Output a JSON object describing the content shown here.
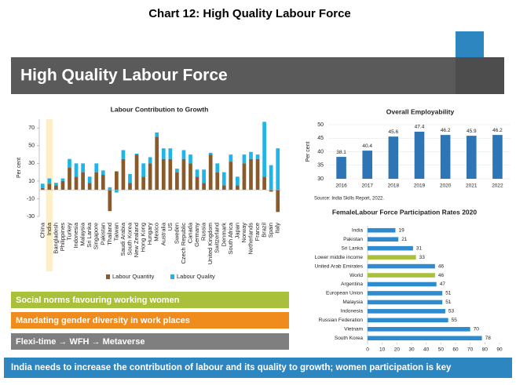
{
  "title": "Chart 12: High Quality Labour Force",
  "banner": "High Quality Labour Force",
  "chart_data": [
    {
      "type": "bar",
      "stacked": true,
      "title": "Labour Contribution to Growth",
      "y_label": "Per cent",
      "categories": [
        "China",
        "India",
        "Bangladesh",
        "Philippines",
        "Turkey",
        "Indonesia",
        "Malaysia",
        "Sri Lanka",
        "Singapore",
        "Pakistan",
        "Thailand",
        "Taiwan",
        "Saudi Arabia",
        "South Korea",
        "New Zealand",
        "Hong Kong",
        "Hungary",
        "Mexico",
        "Australia",
        "US",
        "Sweden",
        "Czech Republic",
        "Canada",
        "Germany",
        "Russia",
        "United Kingdom",
        "Switzerland",
        "Denmark",
        "South Africa",
        "Japan",
        "Norway",
        "Netherlands",
        "France",
        "Brazil",
        "Spain",
        "Italy"
      ],
      "highlight": "India",
      "series": [
        {
          "name": "Labour Quantity",
          "color": "#8b5a2b",
          "values": [
            2,
            7,
            5,
            10,
            25,
            15,
            20,
            8,
            20,
            17,
            -24,
            21,
            35,
            8,
            40,
            15,
            30,
            60,
            35,
            35,
            20,
            35,
            30,
            15,
            8,
            40,
            20,
            5,
            32,
            5,
            30,
            35,
            35,
            15,
            -2,
            -25
          ]
        },
        {
          "name": "Labour Quality",
          "color": "#1fb5e8",
          "values": [
            5,
            6,
            3,
            3,
            10,
            15,
            10,
            7,
            10,
            5,
            3,
            -3,
            10,
            10,
            1,
            15,
            7,
            5,
            12,
            12,
            4,
            10,
            10,
            8,
            15,
            2,
            10,
            15,
            8,
            10,
            10,
            8,
            5,
            62,
            28,
            47
          ]
        }
      ],
      "ylim": [
        -30,
        80
      ],
      "yticks": [
        -30,
        -10,
        10,
        30,
        50,
        70
      ]
    },
    {
      "type": "bar",
      "title": "Overall Employability",
      "y_label": "Per cent",
      "categories": [
        "2016",
        "2017",
        "2018",
        "2019",
        "2020",
        "2021",
        "2022"
      ],
      "values": [
        38.1,
        40.4,
        45.6,
        47.4,
        46.2,
        45.9,
        46.2
      ],
      "color": "#2e75b6",
      "ylim": [
        30,
        50
      ],
      "yticks": [
        30,
        35,
        40,
        45,
        50
      ],
      "grid": true,
      "source": "Source: India Skills Report, 2022."
    },
    {
      "type": "barh",
      "title": "FemaleLabour Force Participation Rates 2020",
      "categories": [
        "India",
        "Pakistan",
        "Sri Lanka",
        "Lower middle income",
        "United Arab Emirates",
        "World",
        "Argentina",
        "European Union",
        "Malaysia",
        "Indonesia",
        "Russian Federation",
        "Vietnam",
        "South Korea"
      ],
      "values": [
        19,
        21,
        31,
        33,
        46,
        46,
        47,
        51,
        51,
        53,
        55,
        70,
        78
      ],
      "colors": [
        "#2e8bcf",
        "#2e8bcf",
        "#2e8bcf",
        "#a8c03a",
        "#2e8bcf",
        "#a8c03a",
        "#2e8bcf",
        "#2e8bcf",
        "#2e8bcf",
        "#2e8bcf",
        "#2e8bcf",
        "#2e8bcf",
        "#2e8bcf"
      ],
      "xlim": [
        0,
        90
      ],
      "xticks": [
        0,
        10,
        20,
        30,
        40,
        50,
        60,
        70,
        80,
        90
      ]
    }
  ],
  "points": [
    "Social norms favouring working women",
    "Mandating gender diversity in work places",
    "Flexi-time → WFH → Metaverse"
  ],
  "conclusion": "India needs to increase the contribution of  labour and its quality to growth; women participation is key"
}
